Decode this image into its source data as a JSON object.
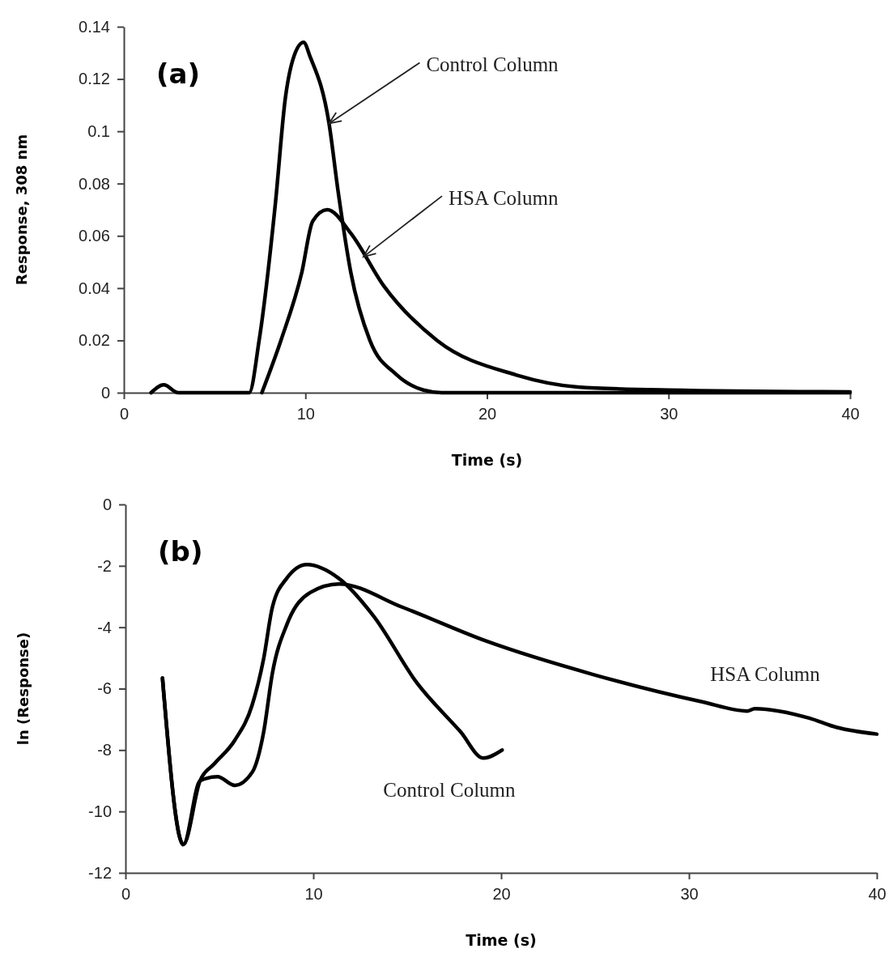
{
  "chart_data": [
    {
      "type": "line",
      "xlabel": "Time (s)",
      "ylabel": "Response, 308 nm",
      "xlim": [
        0,
        40
      ],
      "ylim": [
        0,
        0.14
      ],
      "xticks": [
        0,
        10,
        20,
        30,
        40
      ],
      "yticks": [
        0,
        0.02,
        0.04,
        0.06,
        0.08,
        0.1,
        0.12,
        0.14
      ],
      "grid": false,
      "marker": "none",
      "line_style": "solid",
      "series": [
        {
          "name": null,
          "color": "#000000",
          "x": [
            1.5,
            2.2,
            3,
            6.9,
            7.45,
            8.34,
            8.9,
            9.36,
            9.9,
            10.26,
            11.3,
            11.8,
            12.5,
            13.55,
            15,
            16.5,
            17.5,
            40
          ],
          "values": [
            0,
            0.003,
            0,
            0,
            0.02,
            0.072,
            0.113,
            0.1285,
            0.134,
            0.1285,
            0.103,
            0.077,
            0.046,
            0.02,
            0.007,
            0.001,
            0,
            0
          ]
        },
        {
          "name": null,
          "color": "#000000",
          "x": [
            7.6,
            8.65,
            9.8,
            10.4,
            11.2,
            12.5,
            14.3,
            17.25,
            21.6,
            25,
            30,
            40
          ],
          "values": [
            0,
            0.02,
            0.046,
            0.0656,
            0.07,
            0.061,
            0.041,
            0.02,
            0.0068,
            0.0022,
            0.001,
            0.0003
          ]
        }
      ],
      "annotations": [
        "(a)",
        {
          "text": "Control Column",
          "x": 11.3,
          "y": 0.103
        },
        {
          "text": "HSA Column",
          "x": 13.2,
          "y": 0.052
        }
      ]
    },
    {
      "type": "line",
      "xlabel": "Time (s)",
      "ylabel": "ln (Response)",
      "xlim": [
        0,
        40
      ],
      "ylim": [
        -12,
        0
      ],
      "xticks": [
        0,
        10,
        20,
        30,
        40
      ],
      "yticks": [
        0,
        -2,
        -4,
        -6,
        -8,
        -10,
        -12
      ],
      "grid": false,
      "marker": "none",
      "line_style": "solid",
      "series": [
        {
          "name": null,
          "color": "#000000",
          "x": [
            1.97,
            3.08,
            3.97,
            4.74,
            5.82,
            6.74,
            7.35,
            7.82,
            8.58,
            9.66,
            11.36,
            13.2,
            15.5,
            17.83,
            19.05,
            20.05
          ],
          "values": [
            -5.66,
            -11.08,
            -9.0,
            -8.44,
            -7.68,
            -6.54,
            -5.04,
            -3.35,
            -2.41,
            -1.96,
            -2.41,
            -3.63,
            -5.8,
            -7.4,
            -8.26,
            -8.0
          ]
        },
        {
          "name": null,
          "color": "#000000",
          "x": [
            1.97,
            3.08,
            3.97,
            4.9,
            5.82,
            6.75,
            7.36,
            7.82,
            8.6,
            9.83,
            11.36,
            14.75,
            19.2,
            24.9,
            30.7,
            33.1,
            33.5,
            36.4,
            37.85,
            40
          ],
          "values": [
            -5.66,
            -11.08,
            -9.0,
            -8.87,
            -9.15,
            -8.72,
            -7.4,
            -5.5,
            -3.9,
            -2.87,
            -2.59,
            -3.35,
            -4.45,
            -5.54,
            -6.43,
            -6.73,
            -6.65,
            -6.96,
            -7.26,
            -7.48
          ]
        }
      ],
      "annotations": [
        "(b)",
        {
          "text": "Control Column",
          "x": 19.05,
          "y": -8.26
        },
        {
          "text": "HSA Column",
          "x": 33.1,
          "y": -6.73
        }
      ]
    }
  ]
}
